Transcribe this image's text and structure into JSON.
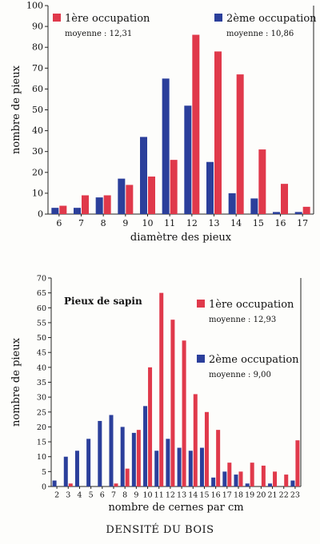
{
  "colors": {
    "series1": "#e0394b",
    "series2": "#2b3f9b",
    "axis": "#222222"
  },
  "chart_data": [
    {
      "type": "bar",
      "title": "",
      "xlabel": "diamètre des pieux",
      "ylabel": "nombre de pieux",
      "ylim": [
        0,
        100
      ],
      "yticks": [
        "0",
        "10",
        "20",
        "30",
        "40",
        "50",
        "60",
        "70",
        "80",
        "90",
        "100"
      ],
      "categories": [
        "6",
        "7",
        "8",
        "9",
        "10",
        "11",
        "12",
        "13",
        "14",
        "15",
        "16",
        "17"
      ],
      "series": [
        {
          "name": "2ème occupation",
          "note": "moyenne : 10,86",
          "color": "#2b3f9b",
          "values": [
            3,
            3,
            8,
            17,
            37,
            65,
            52,
            25,
            10,
            7.5,
            1,
            1
          ]
        },
        {
          "name": "1ère occupation",
          "note": "moyenne : 12,31",
          "color": "#e0394b",
          "values": [
            4,
            9,
            9,
            14,
            18,
            26,
            86,
            78,
            67,
            31,
            14.5,
            3.5
          ]
        }
      ],
      "grid": false,
      "legend": [
        "top-left",
        "top-right"
      ]
    },
    {
      "type": "bar",
      "title": "Pieux de sapin",
      "xlabel": "nombre de cernes par cm",
      "ylabel": "nombre de pieux",
      "ylim": [
        0,
        70
      ],
      "yticks": [
        "0",
        "5",
        "10",
        "15",
        "20",
        "25",
        "30",
        "35",
        "40",
        "45",
        "50",
        "55",
        "60",
        "65",
        "70"
      ],
      "categories": [
        "2",
        "3",
        "4",
        "5",
        "6",
        "7",
        "8",
        "9",
        "10",
        "11",
        "12",
        "13",
        "14",
        "15",
        "16",
        "17",
        "18",
        "19",
        "20",
        "21",
        "22",
        "23"
      ],
      "series": [
        {
          "name": "2ème occupation",
          "note": "moyenne : 9,00",
          "color": "#2b3f9b",
          "values": [
            2,
            10,
            12,
            16,
            22,
            24,
            20,
            18,
            27,
            12,
            16,
            13,
            12,
            13,
            3,
            5,
            4,
            1,
            0,
            1,
            0,
            2
          ]
        },
        {
          "name": "1ère occupation",
          "note": "moyenne : 12,93",
          "color": "#e0394b",
          "values": [
            0,
            1,
            0,
            0,
            0,
            1,
            6,
            19,
            40,
            65,
            56,
            49,
            31,
            25,
            19,
            8,
            5,
            8,
            7,
            5,
            4,
            15.5
          ]
        }
      ],
      "grid": false,
      "legend": [
        "right"
      ]
    }
  ],
  "footer": {
    "title": "DENSITÉ DU BOIS"
  }
}
